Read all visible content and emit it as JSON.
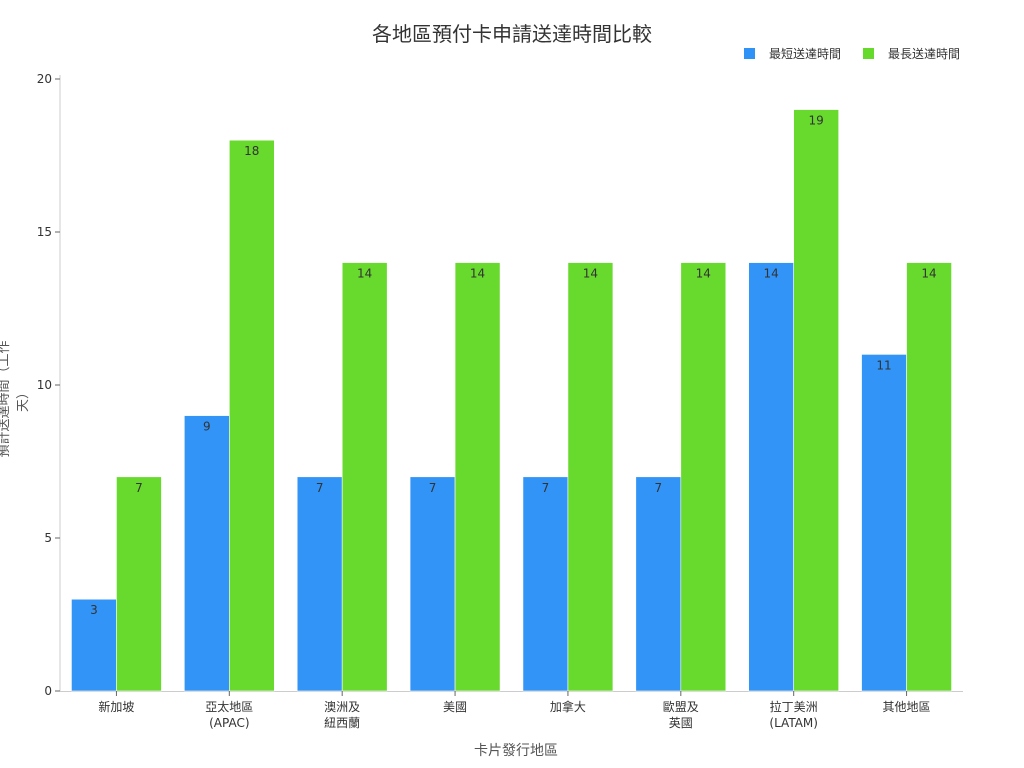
{
  "chart_data": {
    "type": "bar",
    "title": "各地區預付卡申請送達時間比較",
    "xlabel": "卡片發行地區",
    "ylabel": "預計送達時間（工作天）",
    "ylim": [
      0,
      20
    ],
    "yticks": [
      0,
      5,
      10,
      15,
      20
    ],
    "grid": false,
    "legend_position": "top-right",
    "categories": [
      [
        "新加坡"
      ],
      [
        "亞太地區",
        "(APAC)"
      ],
      [
        "澳洲及",
        "紐西蘭"
      ],
      [
        "美國"
      ],
      [
        "加拿大"
      ],
      [
        "歐盟及",
        "英國"
      ],
      [
        "拉丁美洲",
        "(LATAM)"
      ],
      [
        "其他地區"
      ]
    ],
    "series": [
      {
        "name": "最短送達時間",
        "color": "#2f92f7",
        "values": [
          3,
          9,
          7,
          7,
          7,
          7,
          14,
          11
        ]
      },
      {
        "name": "最長送達時間",
        "color": "#66da2a",
        "values": [
          7,
          18,
          14,
          14,
          14,
          14,
          19,
          14
        ]
      }
    ]
  }
}
